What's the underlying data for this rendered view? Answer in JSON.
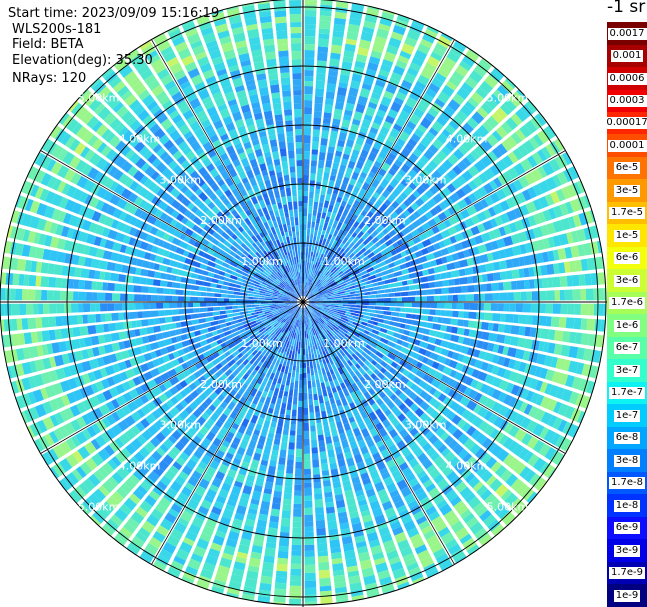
{
  "header": {
    "start_time": "Start time: 2023/09/09 15:16:19",
    "instrument": "WLS200s-181",
    "field": "Field: BETA",
    "elevation": "Elevation(deg): 35.30",
    "nrays": "NRays: 120"
  },
  "range_labels": [
    "1.00km",
    "2.00km",
    "3.00km",
    "4.00km",
    "5.00km"
  ],
  "colorbar": {
    "unit": "-1 sr",
    "entries": [
      {
        "label": "0.0017",
        "color": "#7a0000"
      },
      {
        "label": "0.001",
        "color": "#a60000"
      },
      {
        "label": "0.0006",
        "color": "#d00000"
      },
      {
        "label": "0.0003",
        "color": "#f00000"
      },
      {
        "label": "0.00017",
        "color": "#ff2600"
      },
      {
        "label": "0.0001",
        "color": "#ff4d00"
      },
      {
        "label": "6e-5",
        "color": "#ff7300"
      },
      {
        "label": "3e-5",
        "color": "#ff9900"
      },
      {
        "label": "1.7e-5",
        "color": "#ffbf00"
      },
      {
        "label": "1e-5",
        "color": "#ffe600"
      },
      {
        "label": "6e-6",
        "color": "#f2ff0d"
      },
      {
        "label": "3e-6",
        "color": "#ccff33"
      },
      {
        "label": "1.7e-6",
        "color": "#a6ff59"
      },
      {
        "label": "1e-6",
        "color": "#80ff80"
      },
      {
        "label": "6e-7",
        "color": "#59ffa6"
      },
      {
        "label": "3e-7",
        "color": "#33ffcc"
      },
      {
        "label": "1.7e-7",
        "color": "#0df2f2"
      },
      {
        "label": "1e-7",
        "color": "#00ccff"
      },
      {
        "label": "6e-8",
        "color": "#00a6ff"
      },
      {
        "label": "3e-8",
        "color": "#0080ff"
      },
      {
        "label": "1.7e-8",
        "color": "#0059ff"
      },
      {
        "label": "1e-8",
        "color": "#0033ff"
      },
      {
        "label": "6e-9",
        "color": "#0d0dff"
      },
      {
        "label": "3e-9",
        "color": "#0000e6"
      },
      {
        "label": "1.7e-9",
        "color": "#0000b3"
      },
      {
        "label": "1e-9",
        "color": "#000080"
      }
    ]
  }
}
